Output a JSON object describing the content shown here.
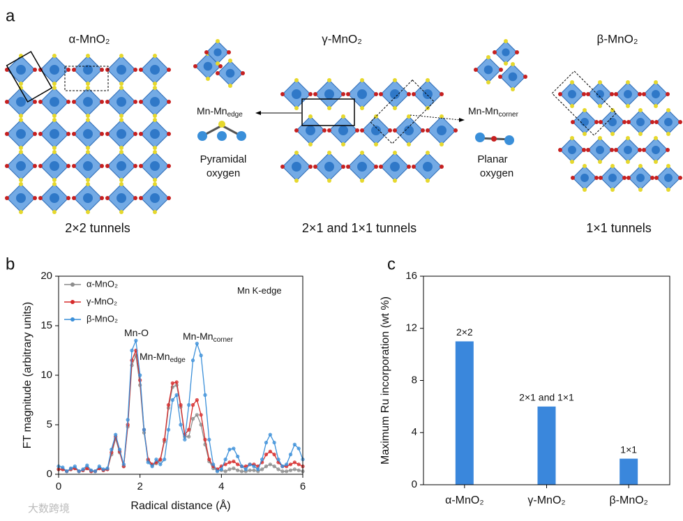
{
  "panel_labels": [
    "a",
    "b",
    "c"
  ],
  "structures": {
    "phases": [
      {
        "name": "α-MnO₂",
        "tunnels": "2×2 tunnels"
      },
      {
        "name": "γ-MnO₂",
        "tunnels": "2×1 and 1×1 tunnels"
      },
      {
        "name": "β-MnO₂",
        "tunnels": "1×1 tunnels"
      }
    ],
    "edge": {
      "label": "Mn-Mn",
      "sub": "edge",
      "oxygen": [
        "Pyramidal",
        "oxygen"
      ]
    },
    "corner": {
      "label": "Mn-Mn",
      "sub": "corner",
      "oxygen": [
        "Planar",
        "oxygen"
      ]
    }
  },
  "watermark": "大数跨境",
  "chart_data": [
    {
      "type": "line",
      "xlabel": "Radical distance (Å)",
      "ylabel": "FT magnitude (arbitrary units)",
      "xlim": [
        0,
        6
      ],
      "ylim": [
        0,
        20
      ],
      "xticks": [
        0,
        2,
        4,
        6
      ],
      "yticks": [
        0,
        5,
        10,
        15,
        20
      ],
      "legend": "top-left",
      "x": [
        0,
        0.1,
        0.2,
        0.3,
        0.4,
        0.5,
        0.6,
        0.7,
        0.8,
        0.9,
        1.0,
        1.1,
        1.2,
        1.3,
        1.4,
        1.5,
        1.6,
        1.7,
        1.8,
        1.9,
        2.0,
        2.1,
        2.2,
        2.3,
        2.4,
        2.5,
        2.6,
        2.7,
        2.8,
        2.9,
        3.0,
        3.1,
        3.2,
        3.3,
        3.4,
        3.5,
        3.6,
        3.7,
        3.8,
        3.9,
        4.0,
        4.1,
        4.2,
        4.3,
        4.4,
        4.5,
        4.6,
        4.7,
        4.8,
        4.9,
        5.0,
        5.1,
        5.2,
        5.3,
        5.4,
        5.5,
        5.6,
        5.7,
        5.8,
        5.9,
        6.0
      ],
      "series": [
        {
          "name": "α-MnO₂",
          "color": "#8c8c8c",
          "values": [
            0.5,
            0.5,
            0.3,
            0.5,
            0.6,
            0.3,
            0.4,
            0.6,
            0.3,
            0.3,
            0.6,
            0.4,
            0.5,
            2.0,
            3.6,
            2.2,
            0.8,
            4.8,
            11.0,
            12.0,
            9.0,
            4.2,
            1.4,
            0.9,
            1.1,
            1.4,
            3.3,
            6.7,
            8.8,
            9.0,
            6.8,
            3.8,
            3.8,
            5.6,
            6.0,
            5.0,
            3.0,
            1.3,
            0.6,
            0.4,
            0.4,
            0.3,
            0.5,
            0.6,
            0.4,
            0.3,
            0.3,
            0.4,
            0.4,
            0.3,
            0.5,
            0.8,
            1.0,
            0.8,
            0.5,
            0.3,
            0.3,
            0.4,
            0.5,
            0.4,
            0.3
          ]
        },
        {
          "name": "γ-MnO₂",
          "color": "#d62b2b",
          "values": [
            0.5,
            0.5,
            0.3,
            0.5,
            0.6,
            0.3,
            0.4,
            0.6,
            0.3,
            0.3,
            0.6,
            0.4,
            0.5,
            2.2,
            3.8,
            2.3,
            0.8,
            5.0,
            11.5,
            12.5,
            9.5,
            4.5,
            1.5,
            1.0,
            1.2,
            1.5,
            3.5,
            7.0,
            9.2,
            9.3,
            7.0,
            4.0,
            4.5,
            7.0,
            7.5,
            6.0,
            3.5,
            1.5,
            0.8,
            0.5,
            0.8,
            1.0,
            1.2,
            1.3,
            1.0,
            0.8,
            0.8,
            1.0,
            1.0,
            0.8,
            1.2,
            2.0,
            2.3,
            2.0,
            1.2,
            0.8,
            0.8,
            1.0,
            1.2,
            1.0,
            0.8
          ]
        },
        {
          "name": "β-MnO₂",
          "color": "#3a8fd9",
          "values": [
            0.8,
            0.7,
            0.3,
            0.6,
            0.8,
            0.3,
            0.5,
            0.9,
            0.4,
            0.3,
            0.8,
            0.5,
            0.6,
            2.5,
            4.0,
            2.5,
            1.0,
            5.5,
            12.5,
            13.5,
            10.0,
            4.5,
            1.2,
            0.8,
            1.5,
            1.0,
            1.5,
            4.5,
            7.5,
            8.0,
            5.0,
            3.5,
            7.0,
            11.5,
            13.2,
            12.0,
            8.0,
            3.5,
            1.0,
            0.3,
            0.5,
            1.5,
            2.5,
            2.6,
            1.8,
            0.8,
            0.5,
            1.0,
            0.8,
            0.5,
            1.5,
            3.2,
            4.0,
            3.2,
            1.5,
            0.8,
            1.0,
            2.0,
            3.0,
            2.6,
            1.5
          ]
        }
      ],
      "annotations": [
        {
          "text": "Mn K-edge"
        },
        {
          "text": "Mn-O"
        },
        {
          "text": "Mn-Mn",
          "sub": "edge"
        },
        {
          "text": "Mn-Mn",
          "sub": "corner"
        }
      ]
    },
    {
      "type": "bar",
      "ylabel": "Maximum Ru incorporation (wt %)",
      "categories": [
        "α-MnO₂",
        "γ-MnO₂",
        "β-MnO₂"
      ],
      "values": [
        11,
        6,
        2
      ],
      "value_labels": [
        "2×2",
        "2×1 and 1×1",
        "1×1"
      ],
      "color": "#3a87dc",
      "ylim": [
        0,
        16
      ],
      "yticks": [
        0,
        4,
        8,
        12,
        16
      ]
    }
  ]
}
